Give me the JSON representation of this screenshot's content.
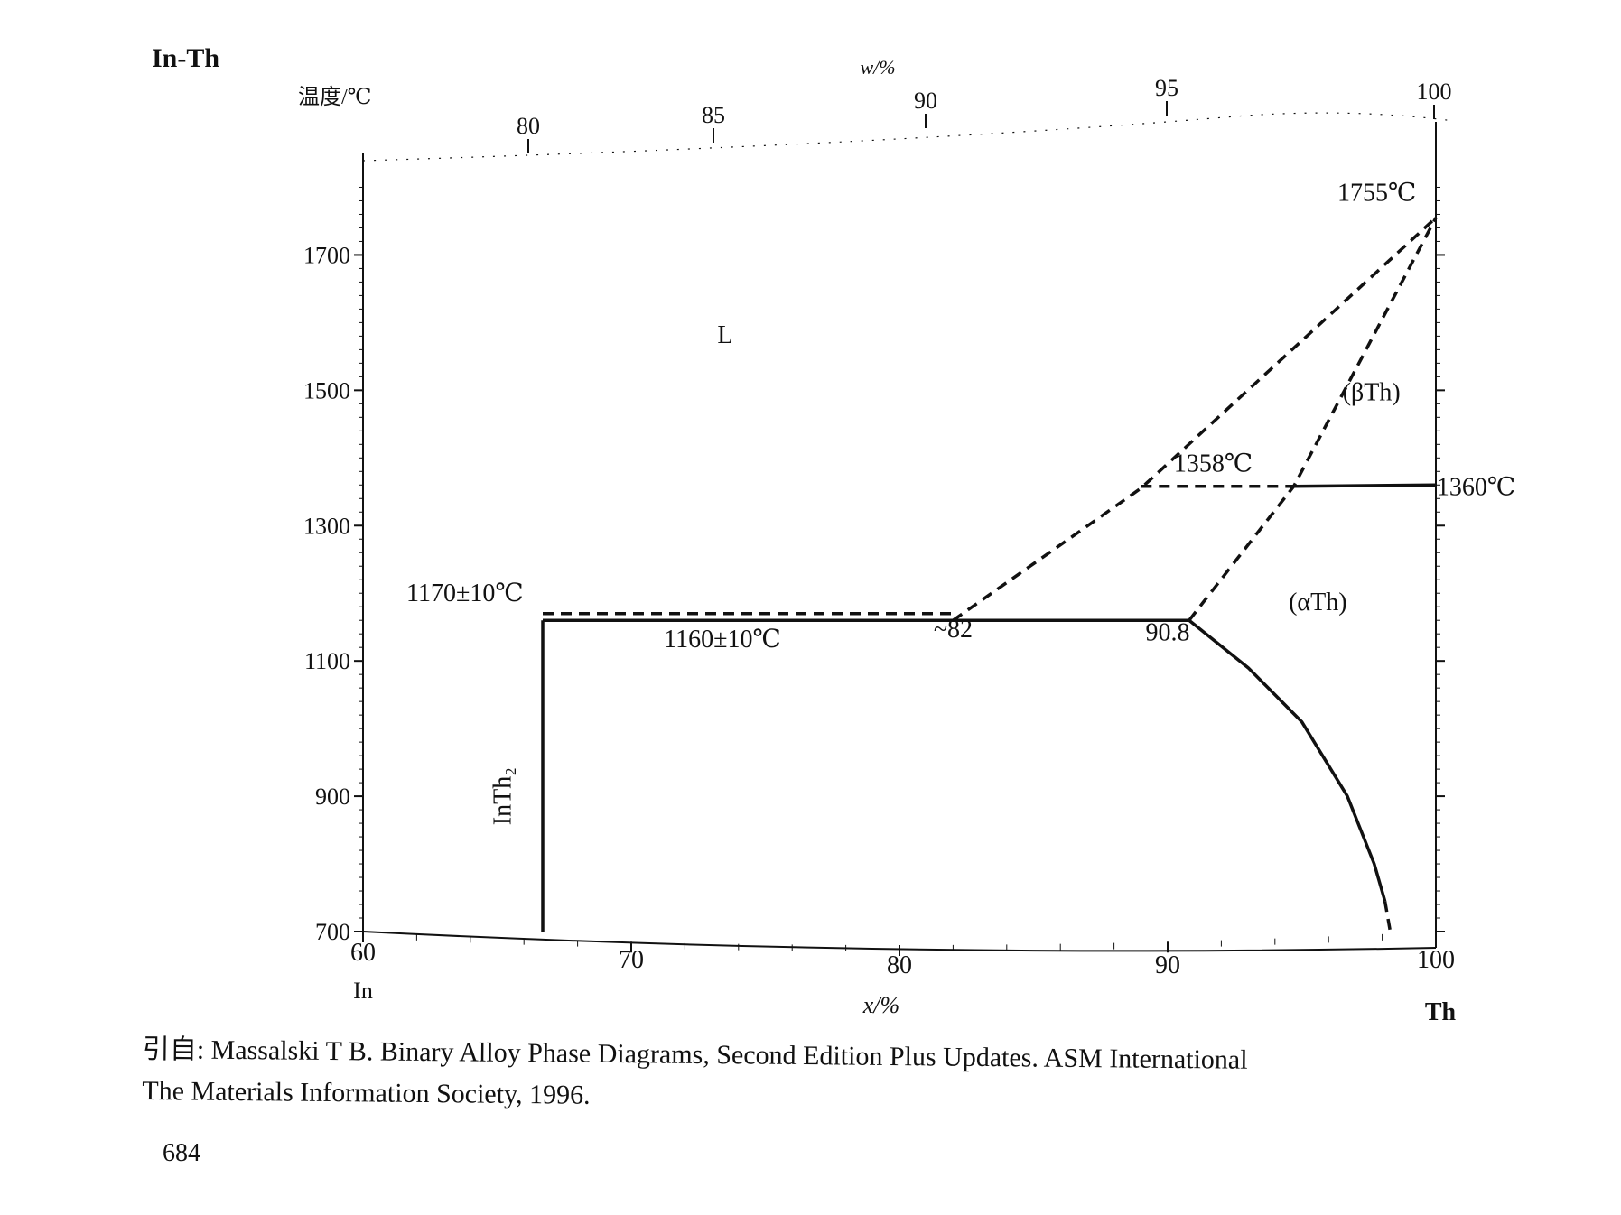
{
  "title": "In-Th",
  "citation": {
    "line1": "引自: Massalski T B. Binary Alloy Phase Diagrams, Second Edition Plus Updates. ASM International",
    "line2": "The Materials Information Society, 1996."
  },
  "page_number": "684",
  "chart_data": {
    "type": "line",
    "title": "In-Th",
    "xlabel": "x/%",
    "x2label": "w/%",
    "ylabel": "温度/℃",
    "xlim": [
      60,
      100
    ],
    "ylim": [
      700,
      1850
    ],
    "x_ticks": [
      60,
      70,
      80,
      90,
      100
    ],
    "x_tick_labels": [
      "60",
      "70",
      "80",
      "90",
      "100"
    ],
    "x2_ticks": [
      80,
      85,
      90,
      95,
      100
    ],
    "x2_tick_labels": [
      "80",
      "85",
      "90",
      "95",
      "100"
    ],
    "y_ticks": [
      700,
      900,
      1100,
      1300,
      1500,
      1700
    ],
    "y_tick_labels": [
      "700",
      "900",
      "1100",
      "1300",
      "1500",
      "1700"
    ],
    "left_element": "In",
    "right_element": "Th",
    "series": [
      {
        "style": "solid",
        "points": [
          [
            66.7,
            700
          ],
          [
            66.7,
            1160
          ]
        ]
      },
      {
        "style": "solid",
        "points": [
          [
            66.7,
            1160
          ],
          [
            90.8,
            1160
          ]
        ]
      },
      {
        "style": "dashed",
        "points": [
          [
            66.7,
            1170
          ],
          [
            82,
            1170
          ]
        ]
      },
      {
        "style": "dashed",
        "points": [
          [
            82,
            1160
          ],
          [
            89,
            1355
          ],
          [
            100,
            1755
          ]
        ]
      },
      {
        "style": "dashed",
        "points": [
          [
            90.8,
            1160
          ],
          [
            94.7,
            1358
          ],
          [
            100,
            1755
          ]
        ]
      },
      {
        "style": "dashed",
        "points": [
          [
            89,
            1358
          ],
          [
            94.7,
            1358
          ]
        ]
      },
      {
        "style": "solid",
        "points": [
          [
            94.7,
            1358
          ],
          [
            100,
            1360
          ]
        ]
      },
      {
        "style": "solid",
        "points": [
          [
            90.8,
            1160
          ],
          [
            93,
            1090
          ],
          [
            95,
            1010
          ],
          [
            96.7,
            900
          ],
          [
            97.7,
            800
          ],
          [
            98.1,
            745
          ]
        ]
      },
      {
        "style": "dashed",
        "points": [
          [
            98.1,
            745
          ],
          [
            98.3,
            700
          ]
        ]
      }
    ],
    "annotations": [
      {
        "text": "L",
        "x": 73.5,
        "y": 1570
      },
      {
        "text": "(βTh)",
        "x": 97.6,
        "y": 1485
      },
      {
        "text": "(αTh)",
        "x": 95.6,
        "y": 1175
      },
      {
        "text": "1755℃",
        "x": 97.8,
        "y": 1780
      },
      {
        "text": "1358℃",
        "x": 91.7,
        "y": 1380
      },
      {
        "text": "1360℃",
        "x": 101.5,
        "y": 1345
      },
      {
        "text": "1170±10℃",
        "x": 63.8,
        "y": 1188
      },
      {
        "text": "1160±10℃",
        "x": 73.4,
        "y": 1120
      },
      {
        "text": "~82",
        "x": 82,
        "y": 1135
      },
      {
        "text": "90.8",
        "x": 90.0,
        "y": 1130
      },
      {
        "text": "InTh₂",
        "x": 65.5,
        "y": 900,
        "rotate": -90
      }
    ]
  }
}
